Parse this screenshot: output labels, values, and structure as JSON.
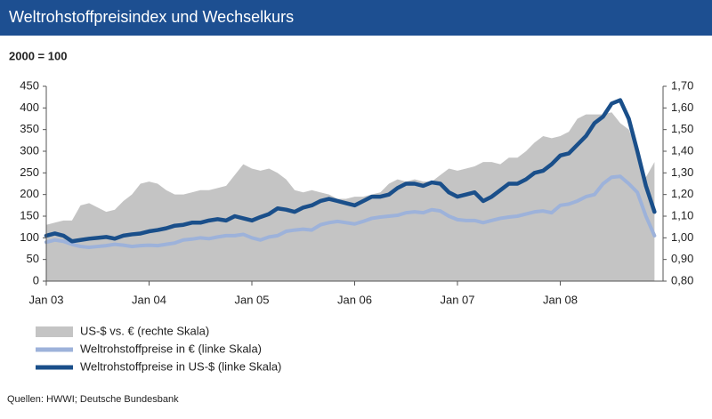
{
  "chart_data": {
    "type": "line",
    "title": "Weltrohstoffpreisindex und Wechselkurs",
    "subtitle": "2000 = 100",
    "source": "Quellen: HWWI; Deutsche Bundesbank",
    "categories": [
      "Jan 03",
      null,
      null,
      null,
      null,
      null,
      null,
      null,
      null,
      null,
      null,
      null,
      "Jan 04",
      null,
      null,
      null,
      null,
      null,
      null,
      null,
      null,
      null,
      null,
      null,
      "Jan 05",
      null,
      null,
      null,
      null,
      null,
      null,
      null,
      null,
      null,
      null,
      null,
      "Jan 06",
      null,
      null,
      null,
      null,
      null,
      null,
      null,
      null,
      null,
      null,
      null,
      "Jan 07",
      null,
      null,
      null,
      null,
      null,
      null,
      null,
      null,
      null,
      null,
      null,
      "Jan 08",
      null,
      null,
      null,
      null,
      null,
      null,
      null,
      null,
      null,
      null,
      null
    ],
    "ylim": [
      0,
      450
    ],
    "yticks": [
      0,
      50,
      100,
      150,
      200,
      250,
      300,
      350,
      400,
      450
    ],
    "y2lim": [
      0.8,
      1.7
    ],
    "y2ticks": [
      {
        "value": 0.8,
        "label": "0,80"
      },
      {
        "value": 0.9,
        "label": "0,90"
      },
      {
        "value": 1.0,
        "label": "1,00"
      },
      {
        "value": 1.1,
        "label": "1,10"
      },
      {
        "value": 1.2,
        "label": "1,20"
      },
      {
        "value": 1.3,
        "label": "1,30"
      },
      {
        "value": 1.4,
        "label": "1,40"
      },
      {
        "value": 1.5,
        "label": "1,50"
      },
      {
        "value": 1.6,
        "label": "1,60"
      },
      {
        "value": 1.7,
        "label": "1,70"
      }
    ],
    "grid": false,
    "legend": "bottom-left",
    "series": [
      {
        "name": "US-$ vs. € (rechte Skala)",
        "color": "#c4c4c4",
        "kind": "area",
        "axis": "y2",
        "values": [
          1.06,
          1.07,
          1.08,
          1.08,
          1.15,
          1.16,
          1.14,
          1.12,
          1.13,
          1.17,
          1.2,
          1.25,
          1.26,
          1.25,
          1.22,
          1.2,
          1.2,
          1.21,
          1.22,
          1.22,
          1.23,
          1.24,
          1.29,
          1.34,
          1.32,
          1.31,
          1.32,
          1.3,
          1.27,
          1.22,
          1.21,
          1.22,
          1.21,
          1.2,
          1.18,
          1.18,
          1.19,
          1.19,
          1.2,
          1.21,
          1.25,
          1.27,
          1.26,
          1.27,
          1.26,
          1.26,
          1.29,
          1.32,
          1.31,
          1.32,
          1.33,
          1.35,
          1.35,
          1.34,
          1.37,
          1.37,
          1.4,
          1.44,
          1.47,
          1.46,
          1.47,
          1.49,
          1.55,
          1.57,
          1.57,
          1.57,
          1.58,
          1.53,
          1.5,
          1.4,
          1.28,
          1.35
        ]
      },
      {
        "name": "Weltrohstoffpreise in € (linke Skala)",
        "color": "#9db2da",
        "kind": "line",
        "values": [
          90,
          95,
          92,
          85,
          80,
          78,
          80,
          82,
          85,
          83,
          80,
          82,
          83,
          82,
          85,
          88,
          95,
          97,
          100,
          98,
          102,
          105,
          105,
          108,
          100,
          95,
          102,
          105,
          115,
          118,
          120,
          118,
          130,
          135,
          138,
          135,
          132,
          138,
          145,
          148,
          150,
          152,
          158,
          160,
          158,
          165,
          162,
          150,
          142,
          140,
          140,
          135,
          140,
          145,
          148,
          150,
          155,
          160,
          162,
          158,
          175,
          178,
          185,
          195,
          200,
          225,
          240,
          242,
          225,
          205,
          150,
          105
        ]
      },
      {
        "name": "Weltrohstoffpreise in US-$ (linke Skala)",
        "color": "#1a4f8a",
        "kind": "line",
        "values": [
          105,
          110,
          105,
          92,
          95,
          98,
          100,
          102,
          98,
          105,
          108,
          110,
          115,
          118,
          122,
          128,
          130,
          135,
          135,
          140,
          143,
          140,
          150,
          145,
          140,
          148,
          155,
          168,
          165,
          160,
          170,
          175,
          185,
          190,
          185,
          180,
          175,
          185,
          195,
          195,
          200,
          215,
          225,
          225,
          220,
          228,
          225,
          205,
          195,
          200,
          205,
          185,
          195,
          210,
          225,
          225,
          235,
          250,
          255,
          270,
          290,
          295,
          315,
          335,
          365,
          380,
          410,
          418,
          375,
          300,
          220,
          160
        ]
      }
    ]
  }
}
